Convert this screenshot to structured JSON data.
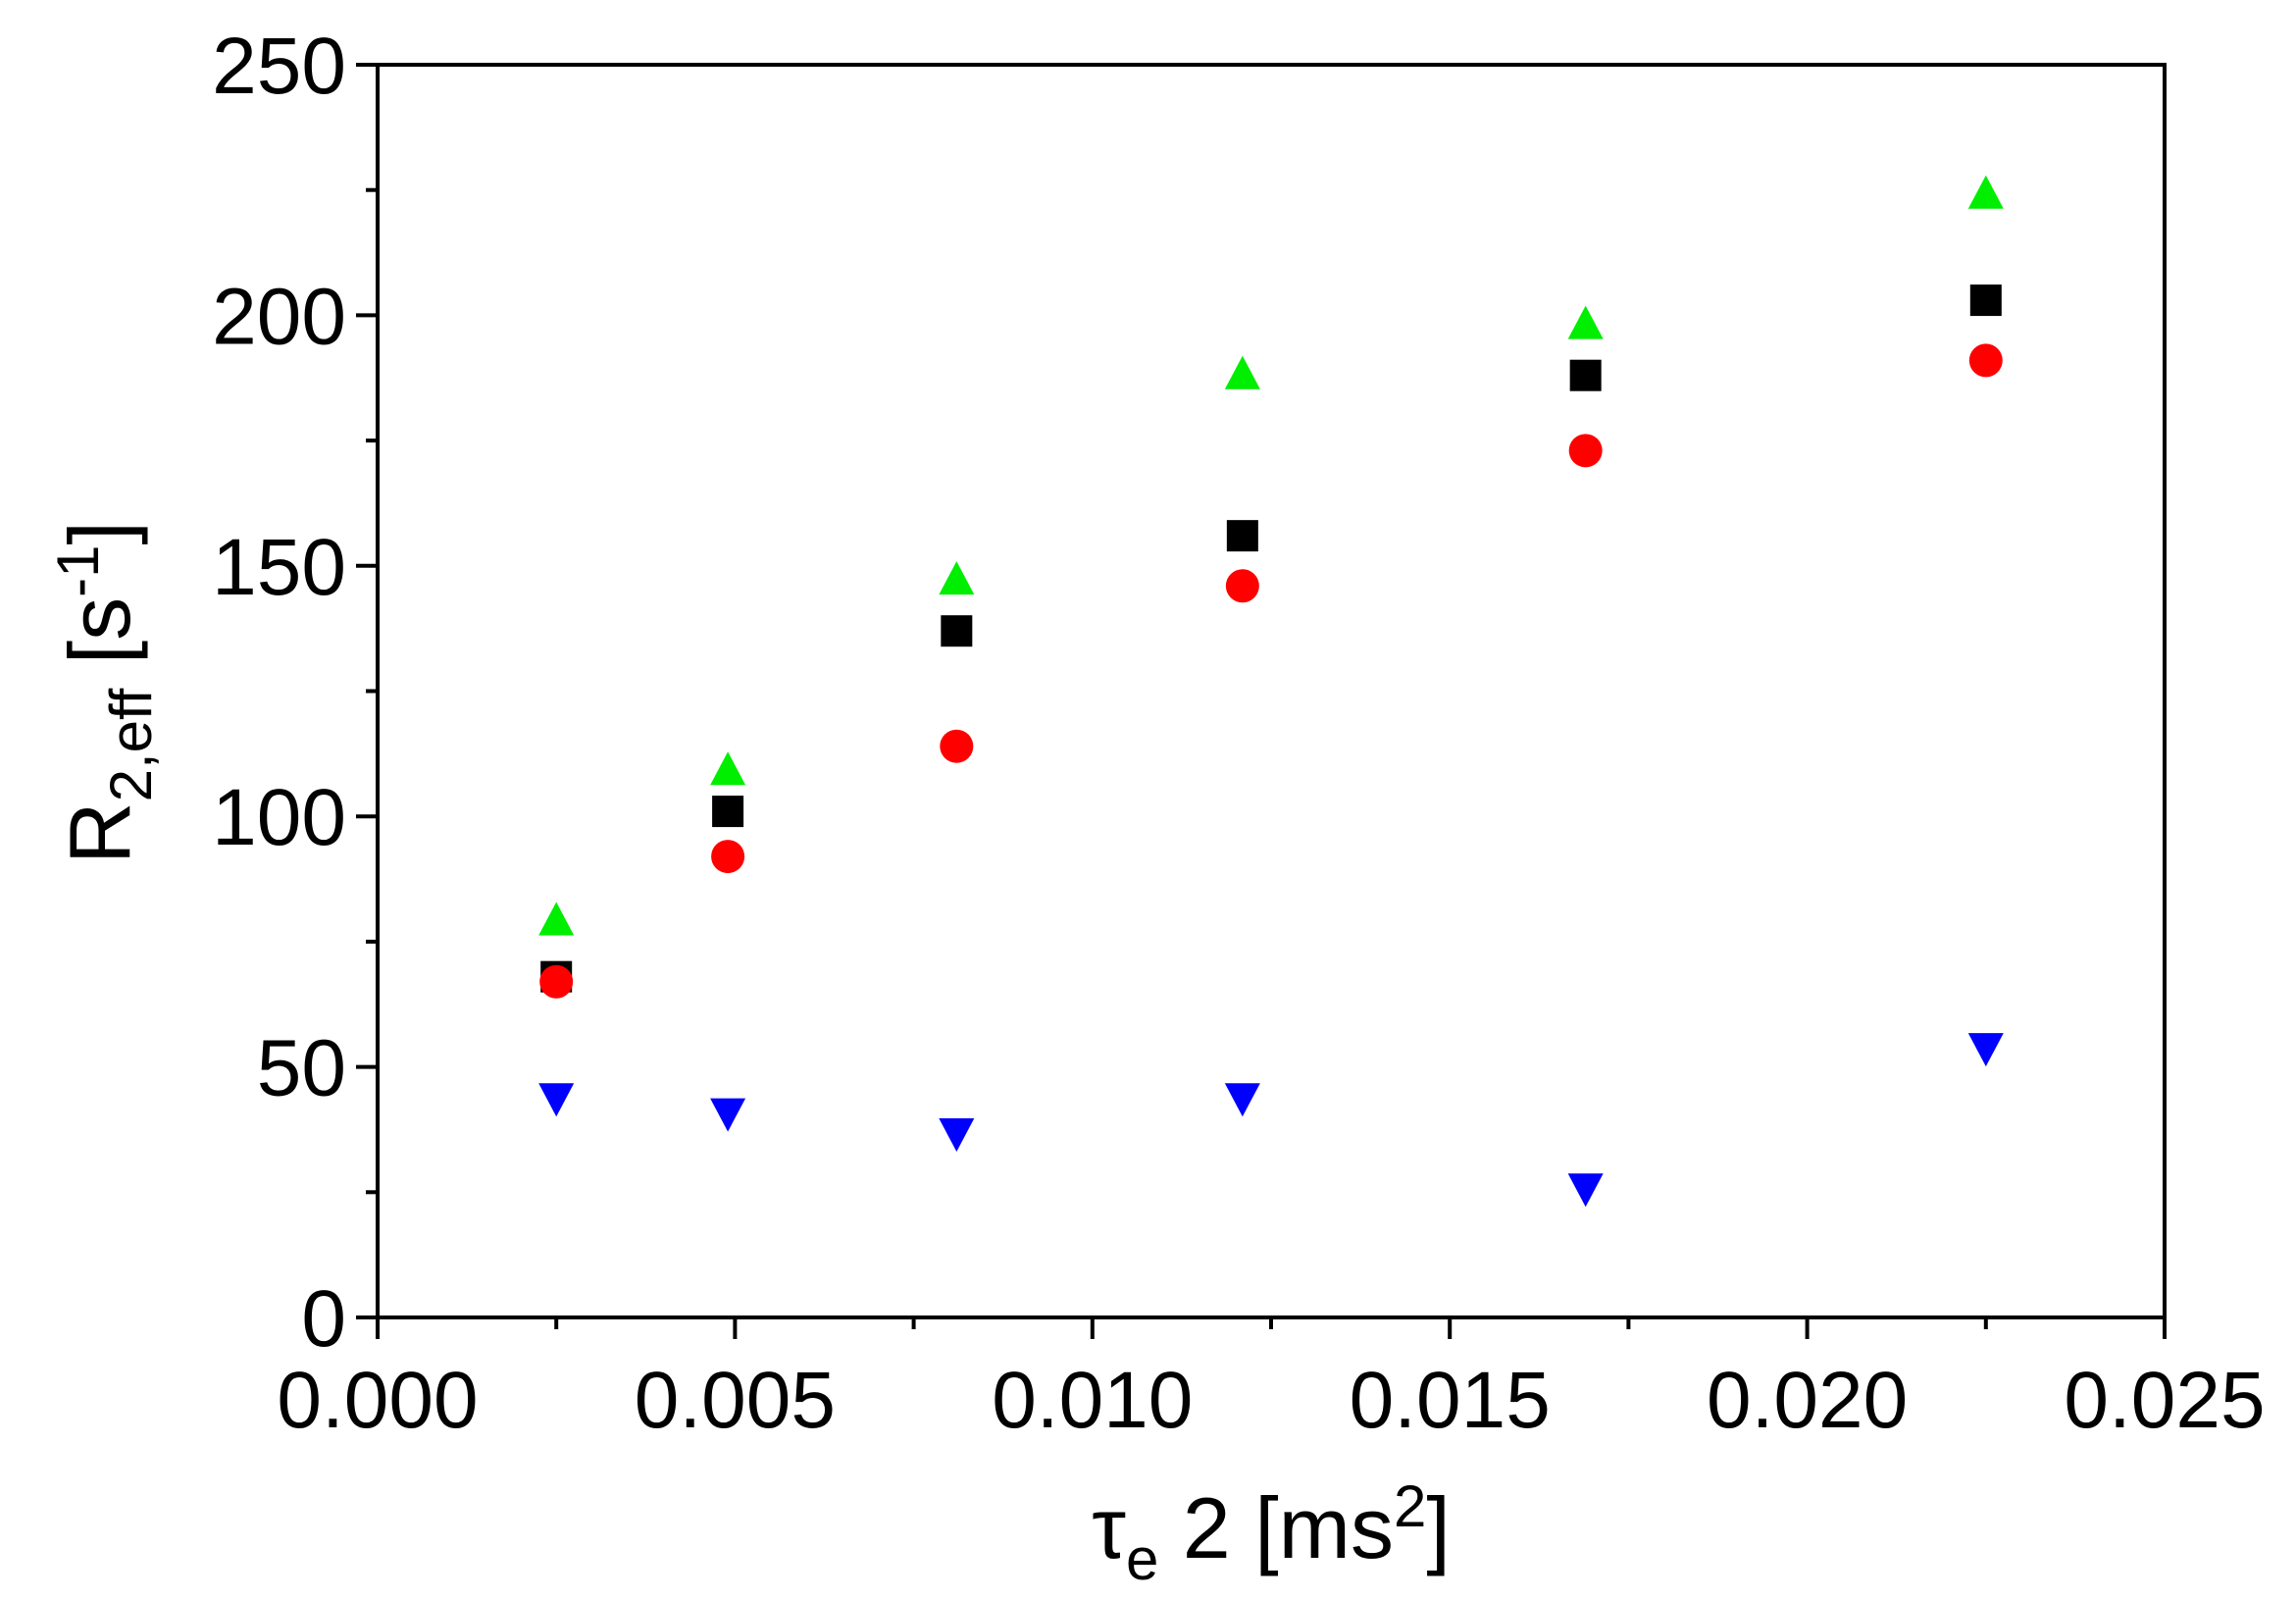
{
  "chart_data": {
    "type": "scatter",
    "xlabel": {
      "pre": "τ",
      "sub": "e",
      "mid": " 2 [ms",
      "sup": "2",
      "post": "]"
    },
    "ylabel": {
      "pre": "R",
      "sub": "2,eff",
      "mid": " [s",
      "sup": "-1",
      "post": "]"
    },
    "xlim": [
      0,
      0.025
    ],
    "ylim": [
      0,
      250
    ],
    "x_ticks": [
      0,
      0.005,
      0.01,
      0.015,
      0.02,
      0.025
    ],
    "x_tick_labels": [
      "0.000",
      "0.005",
      "0.010",
      "0.015",
      "0.020",
      "0.025"
    ],
    "y_ticks": [
      0,
      50,
      100,
      150,
      200,
      250
    ],
    "y_tick_labels": [
      "0",
      "50",
      "100",
      "150",
      "200",
      "250"
    ],
    "grid": false,
    "legend": "none",
    "series": [
      {
        "marker": "square",
        "color": "#000000",
        "x": [
          0.0025,
          0.0049,
          0.0081,
          0.0121,
          0.0169,
          0.0225
        ],
        "y": [
          68,
          101,
          137,
          156,
          188,
          203
        ]
      },
      {
        "marker": "circle",
        "color": "#ff0000",
        "x": [
          0.0025,
          0.0049,
          0.0081,
          0.0121,
          0.0169,
          0.0225
        ],
        "y": [
          67,
          92,
          114,
          146,
          173,
          191
        ]
      },
      {
        "marker": "triangle-up",
        "color": "#00ee00",
        "x": [
          0.0025,
          0.0049,
          0.0081,
          0.0121,
          0.0169,
          0.0225
        ],
        "y": [
          79,
          109,
          147,
          188,
          198,
          224
        ]
      },
      {
        "marker": "triangle-down",
        "color": "#0000ff",
        "x": [
          0.0025,
          0.0049,
          0.0081,
          0.0121,
          0.0169,
          0.0225
        ],
        "y": [
          44,
          41,
          37,
          44,
          26,
          54
        ]
      }
    ]
  }
}
